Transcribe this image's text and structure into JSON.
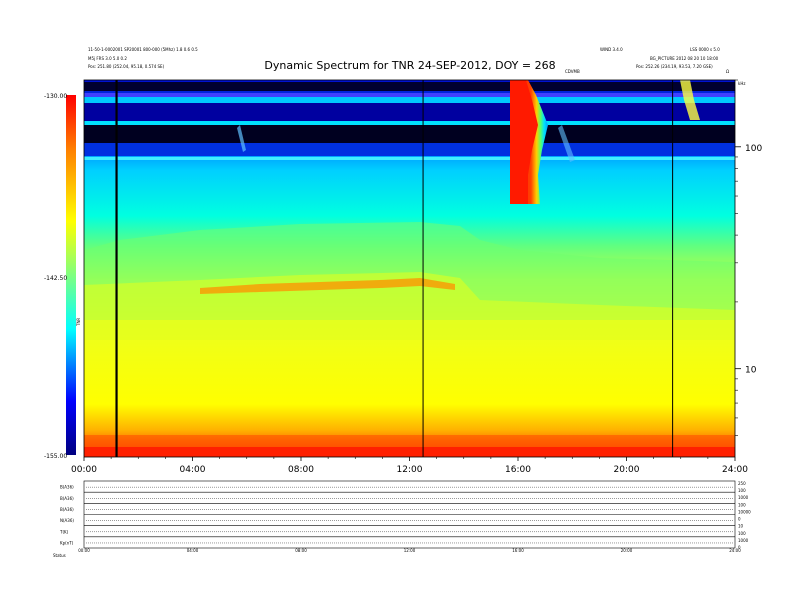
{
  "chart_data": {
    "type": "heatmap",
    "title": "Dynamic Spectrum for TNR 24-SEP-2012, DOY = 268",
    "header_left": {
      "line1": "11-50-1-0002001 SP20001 800-000 (5Mhz) 1.8 0.6 0.5",
      "line2": "M5j FRS 3.0 5.0 0.2",
      "line3": "Pos: 251.80 (252.04, 95.18, 0.574 SE)"
    },
    "header_right": {
      "line1": "WIND 3.4.0",
      "line2": "LSS 0000 s 5.0",
      "line3": "BG_PICTURE 2012 08 20 10 18:00",
      "line4": "Pos: 252.26 (234.19, 93.53, 7.20 GSE)",
      "corner": "Ω",
      "small_label": "CDVMB"
    },
    "xaxis": {
      "ticks": [
        "00:00",
        "04:00",
        "08:00",
        "12:00",
        "16:00",
        "20:00",
        "24:00"
      ],
      "range_hours": [
        0,
        24
      ]
    },
    "yaxis_right": {
      "label": "kHz",
      "scale": "log",
      "ticks": [
        "100",
        "10"
      ],
      "range_khz": [
        4,
        200
      ]
    },
    "colorbar": {
      "label": "TNR",
      "ticks": [
        "-130.00",
        "-142.50",
        "-155.00"
      ],
      "range": [
        -155,
        -130
      ],
      "colors": [
        "#00007f",
        "#0000ff",
        "#00ffff",
        "#7fff7f",
        "#ffff00",
        "#ff7f00",
        "#ff0000"
      ]
    },
    "data_gap_lines_hours": [
      1.2,
      12.5,
      21.7
    ],
    "events": [
      {
        "name": "type III burst",
        "start_hour": 15.9,
        "end_hour": 17.0,
        "top_khz": 200,
        "bottom_khz": 60
      },
      {
        "name": "type III burst",
        "start_hour": 21.9,
        "end_hour": 22.6,
        "top_khz": 200,
        "bottom_khz": 120
      }
    ],
    "bands": {
      "lower_edge_khz": [
        {
          "hour": 0,
          "khz": 45
        },
        {
          "hour": 4,
          "khz": 50
        },
        {
          "hour": 8,
          "khz": 55
        },
        {
          "hour": 12,
          "khz": 52
        },
        {
          "hour": 14,
          "khz": 45
        },
        {
          "hour": 16,
          "khz": 38
        },
        {
          "hour": 20,
          "khz": 35
        },
        {
          "hour": 24,
          "khz": 30
        }
      ]
    },
    "bottom_panels": {
      "labels": [
        "B(A36)",
        "B(A36)",
        "B(A36)",
        "N(A36)",
        "T(K)",
        "Kp(nT)"
      ],
      "right_ticks": [
        "250",
        "100",
        "1000",
        "100",
        "10000",
        "0",
        "10",
        "100",
        "1000",
        "0"
      ],
      "x_ticks": [
        "00:00",
        "04:00",
        "08:00",
        "12:00",
        "16:00",
        "20:00",
        "24:00"
      ],
      "footer_label": "Status"
    }
  }
}
